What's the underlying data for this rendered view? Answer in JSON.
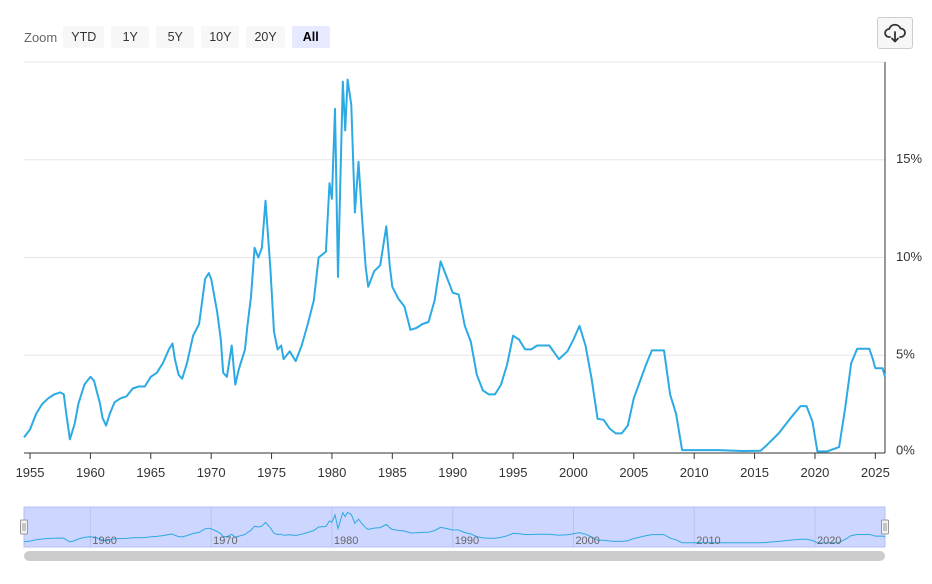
{
  "zoom": {
    "label": "Zoom",
    "buttons": [
      "YTD",
      "1Y",
      "5Y",
      "10Y",
      "20Y",
      "All"
    ],
    "active": "All"
  },
  "toolbar": {
    "download_icon": "cloud-download-icon"
  },
  "colors": {
    "line": "#2caae3",
    "grid": "#e6e6e6",
    "navigator_fill": "#ccd6ff",
    "scrollbar": "#cccccc"
  },
  "chart_data": {
    "type": "line",
    "title": "",
    "xlabel": "",
    "ylabel": "",
    "xlim": [
      1954.5,
      2025.8
    ],
    "ylim": [
      0,
      20
    ],
    "y_ticks": [
      0,
      5,
      10,
      15
    ],
    "y_tick_labels": [
      "0%",
      "5%",
      "10%",
      "15%"
    ],
    "y_axis_side": "right",
    "x_ticks": [
      1955,
      1960,
      1965,
      1970,
      1975,
      1980,
      1985,
      1990,
      1995,
      2000,
      2005,
      2010,
      2015,
      2020,
      2025
    ],
    "grid": true,
    "series": [
      {
        "values": [
          [
            1954.5,
            0.8
          ],
          [
            1955.0,
            1.2
          ],
          [
            1955.5,
            2.0
          ],
          [
            1956.0,
            2.5
          ],
          [
            1956.5,
            2.8
          ],
          [
            1957.0,
            3.0
          ],
          [
            1957.5,
            3.1
          ],
          [
            1957.8,
            3.0
          ],
          [
            1958.0,
            2.0
          ],
          [
            1958.3,
            0.7
          ],
          [
            1958.7,
            1.5
          ],
          [
            1959.0,
            2.5
          ],
          [
            1959.5,
            3.5
          ],
          [
            1960.0,
            3.9
          ],
          [
            1960.3,
            3.7
          ],
          [
            1960.8,
            2.5
          ],
          [
            1961.0,
            1.8
          ],
          [
            1961.3,
            1.4
          ],
          [
            1961.6,
            2.0
          ],
          [
            1962.0,
            2.6
          ],
          [
            1962.5,
            2.8
          ],
          [
            1963.0,
            2.9
          ],
          [
            1963.5,
            3.3
          ],
          [
            1964.0,
            3.4
          ],
          [
            1964.5,
            3.4
          ],
          [
            1965.0,
            3.9
          ],
          [
            1965.5,
            4.1
          ],
          [
            1966.0,
            4.6
          ],
          [
            1966.5,
            5.3
          ],
          [
            1966.8,
            5.6
          ],
          [
            1967.0,
            4.8
          ],
          [
            1967.3,
            4.0
          ],
          [
            1967.6,
            3.8
          ],
          [
            1968.0,
            4.6
          ],
          [
            1968.5,
            6.0
          ],
          [
            1969.0,
            6.6
          ],
          [
            1969.5,
            8.9
          ],
          [
            1969.8,
            9.2
          ],
          [
            1970.0,
            8.9
          ],
          [
            1970.5,
            7.2
          ],
          [
            1970.8,
            5.8
          ],
          [
            1971.0,
            4.1
          ],
          [
            1971.3,
            3.9
          ],
          [
            1971.7,
            5.5
          ],
          [
            1972.0,
            3.5
          ],
          [
            1972.3,
            4.3
          ],
          [
            1972.8,
            5.3
          ],
          [
            1973.0,
            6.5
          ],
          [
            1973.3,
            8.0
          ],
          [
            1973.6,
            10.5
          ],
          [
            1973.9,
            10.0
          ],
          [
            1974.2,
            10.5
          ],
          [
            1974.5,
            12.9
          ],
          [
            1974.9,
            9.5
          ],
          [
            1975.2,
            6.2
          ],
          [
            1975.5,
            5.3
          ],
          [
            1975.8,
            5.5
          ],
          [
            1976.0,
            4.8
          ],
          [
            1976.5,
            5.2
          ],
          [
            1977.0,
            4.7
          ],
          [
            1977.5,
            5.5
          ],
          [
            1978.0,
            6.6
          ],
          [
            1978.5,
            7.8
          ],
          [
            1978.9,
            10.0
          ],
          [
            1979.5,
            10.3
          ],
          [
            1979.8,
            13.8
          ],
          [
            1980.0,
            13.0
          ],
          [
            1980.25,
            17.6
          ],
          [
            1980.5,
            9.0
          ],
          [
            1980.9,
            19.0
          ],
          [
            1981.1,
            16.5
          ],
          [
            1981.3,
            19.1
          ],
          [
            1981.6,
            17.8
          ],
          [
            1981.9,
            12.3
          ],
          [
            1982.2,
            14.9
          ],
          [
            1982.5,
            12.0
          ],
          [
            1982.8,
            9.5
          ],
          [
            1983.0,
            8.5
          ],
          [
            1983.5,
            9.3
          ],
          [
            1984.0,
            9.6
          ],
          [
            1984.5,
            11.6
          ],
          [
            1984.8,
            9.5
          ],
          [
            1985.0,
            8.5
          ],
          [
            1985.5,
            7.9
          ],
          [
            1986.0,
            7.5
          ],
          [
            1986.5,
            6.3
          ],
          [
            1987.0,
            6.4
          ],
          [
            1987.5,
            6.6
          ],
          [
            1988.0,
            6.7
          ],
          [
            1988.5,
            7.8
          ],
          [
            1989.0,
            9.8
          ],
          [
            1989.5,
            9.0
          ],
          [
            1990.0,
            8.2
          ],
          [
            1990.5,
            8.1
          ],
          [
            1991.0,
            6.5
          ],
          [
            1991.5,
            5.7
          ],
          [
            1992.0,
            4.0
          ],
          [
            1992.5,
            3.2
          ],
          [
            1993.0,
            3.0
          ],
          [
            1993.5,
            3.0
          ],
          [
            1994.0,
            3.5
          ],
          [
            1994.5,
            4.5
          ],
          [
            1995.0,
            6.0
          ],
          [
            1995.5,
            5.8
          ],
          [
            1996.0,
            5.3
          ],
          [
            1996.5,
            5.3
          ],
          [
            1997.0,
            5.5
          ],
          [
            1997.5,
            5.5
          ],
          [
            1998.0,
            5.5
          ],
          [
            1998.8,
            4.8
          ],
          [
            1999.5,
            5.2
          ],
          [
            2000.0,
            5.8
          ],
          [
            2000.5,
            6.5
          ],
          [
            2001.0,
            5.5
          ],
          [
            2001.5,
            3.8
          ],
          [
            2002.0,
            1.75
          ],
          [
            2002.5,
            1.7
          ],
          [
            2003.0,
            1.25
          ],
          [
            2003.5,
            1.0
          ],
          [
            2004.0,
            1.0
          ],
          [
            2004.5,
            1.4
          ],
          [
            2005.0,
            2.8
          ],
          [
            2006.0,
            4.5
          ],
          [
            2006.5,
            5.25
          ],
          [
            2007.5,
            5.25
          ],
          [
            2008.0,
            3.0
          ],
          [
            2008.5,
            2.0
          ],
          [
            2009.0,
            0.15
          ],
          [
            2010.0,
            0.15
          ],
          [
            2012.0,
            0.15
          ],
          [
            2014.0,
            0.1
          ],
          [
            2015.5,
            0.12
          ],
          [
            2016.0,
            0.4
          ],
          [
            2017.0,
            1.0
          ],
          [
            2018.0,
            1.8
          ],
          [
            2018.8,
            2.4
          ],
          [
            2019.3,
            2.4
          ],
          [
            2019.8,
            1.6
          ],
          [
            2020.2,
            0.08
          ],
          [
            2021.0,
            0.08
          ],
          [
            2022.0,
            0.3
          ],
          [
            2022.5,
            2.3
          ],
          [
            2023.0,
            4.6
          ],
          [
            2023.5,
            5.33
          ],
          [
            2024.5,
            5.33
          ],
          [
            2024.8,
            4.8
          ],
          [
            2025.0,
            4.33
          ],
          [
            2025.6,
            4.33
          ],
          [
            2025.8,
            3.9
          ]
        ]
      }
    ]
  },
  "navigator": {
    "x_ticks": [
      1960,
      1970,
      1980,
      1990,
      2000,
      2010,
      2020
    ],
    "range": [
      1954.5,
      2025.8
    ]
  }
}
